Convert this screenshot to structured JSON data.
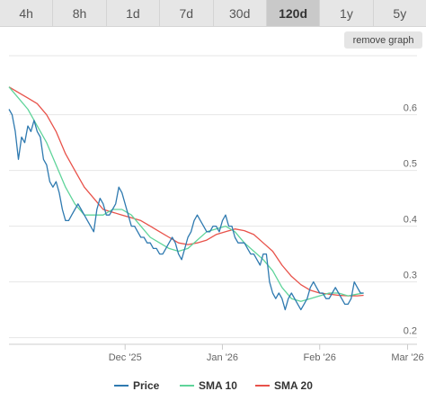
{
  "range_tabs": [
    "4h",
    "8h",
    "1d",
    "7d",
    "30d",
    "120d",
    "1y",
    "5y"
  ],
  "active_tab_index": 5,
  "remove_graph_label": "remove graph",
  "colors": {
    "price": "#2f7ab0",
    "sma10": "#5fd49a",
    "sma20": "#e8524a"
  },
  "chart_data": {
    "type": "line",
    "x_axis": {
      "ticks": [
        {
          "label": "Dec '25",
          "day": 37
        },
        {
          "label": "Jan '26",
          "day": 68
        },
        {
          "label": "Feb '26",
          "day": 99
        },
        {
          "label": "Mar '26",
          "day": 127
        }
      ],
      "range_days": [
        0,
        130
      ]
    },
    "y_axis": {
      "ticks": [
        0.2,
        0.3,
        0.4,
        0.5,
        0.6
      ],
      "range": [
        0.188,
        0.706
      ]
    },
    "grid": true,
    "legend": {
      "position": "bottom",
      "entries": [
        "Price",
        "SMA 10",
        "SMA 20"
      ]
    },
    "series": [
      {
        "name": "Price",
        "color": "#2f7ab0",
        "points": [
          [
            0,
            0.61
          ],
          [
            1,
            0.6
          ],
          [
            2,
            0.57
          ],
          [
            3,
            0.52
          ],
          [
            4,
            0.56
          ],
          [
            5,
            0.55
          ],
          [
            6,
            0.58
          ],
          [
            7,
            0.57
          ],
          [
            8,
            0.59
          ],
          [
            9,
            0.57
          ],
          [
            10,
            0.56
          ],
          [
            11,
            0.52
          ],
          [
            12,
            0.51
          ],
          [
            13,
            0.48
          ],
          [
            14,
            0.47
          ],
          [
            15,
            0.48
          ],
          [
            16,
            0.46
          ],
          [
            17,
            0.43
          ],
          [
            18,
            0.41
          ],
          [
            19,
            0.41
          ],
          [
            20,
            0.42
          ],
          [
            21,
            0.43
          ],
          [
            22,
            0.44
          ],
          [
            23,
            0.43
          ],
          [
            24,
            0.42
          ],
          [
            25,
            0.41
          ],
          [
            26,
            0.4
          ],
          [
            27,
            0.39
          ],
          [
            28,
            0.43
          ],
          [
            29,
            0.45
          ],
          [
            30,
            0.44
          ],
          [
            31,
            0.42
          ],
          [
            32,
            0.42
          ],
          [
            33,
            0.43
          ],
          [
            34,
            0.44
          ],
          [
            35,
            0.47
          ],
          [
            36,
            0.46
          ],
          [
            37,
            0.44
          ],
          [
            38,
            0.42
          ],
          [
            39,
            0.4
          ],
          [
            40,
            0.4
          ],
          [
            41,
            0.39
          ],
          [
            42,
            0.38
          ],
          [
            43,
            0.38
          ],
          [
            44,
            0.37
          ],
          [
            45,
            0.37
          ],
          [
            46,
            0.36
          ],
          [
            47,
            0.36
          ],
          [
            48,
            0.35
          ],
          [
            49,
            0.35
          ],
          [
            50,
            0.36
          ],
          [
            51,
            0.37
          ],
          [
            52,
            0.38
          ],
          [
            53,
            0.37
          ],
          [
            54,
            0.35
          ],
          [
            55,
            0.34
          ],
          [
            56,
            0.36
          ],
          [
            57,
            0.38
          ],
          [
            58,
            0.39
          ],
          [
            59,
            0.41
          ],
          [
            60,
            0.42
          ],
          [
            61,
            0.41
          ],
          [
            62,
            0.4
          ],
          [
            63,
            0.39
          ],
          [
            64,
            0.39
          ],
          [
            65,
            0.4
          ],
          [
            66,
            0.4
          ],
          [
            67,
            0.39
          ],
          [
            68,
            0.41
          ],
          [
            69,
            0.42
          ],
          [
            70,
            0.4
          ],
          [
            71,
            0.4
          ],
          [
            72,
            0.38
          ],
          [
            73,
            0.37
          ],
          [
            74,
            0.37
          ],
          [
            75,
            0.37
          ],
          [
            76,
            0.36
          ],
          [
            77,
            0.35
          ],
          [
            78,
            0.35
          ],
          [
            79,
            0.34
          ],
          [
            80,
            0.33
          ],
          [
            81,
            0.35
          ],
          [
            82,
            0.35
          ],
          [
            83,
            0.3
          ],
          [
            84,
            0.28
          ],
          [
            85,
            0.27
          ],
          [
            86,
            0.28
          ],
          [
            87,
            0.27
          ],
          [
            88,
            0.25
          ],
          [
            89,
            0.27
          ],
          [
            90,
            0.28
          ],
          [
            91,
            0.27
          ],
          [
            92,
            0.26
          ],
          [
            93,
            0.25
          ],
          [
            94,
            0.26
          ],
          [
            95,
            0.27
          ],
          [
            96,
            0.29
          ],
          [
            97,
            0.3
          ],
          [
            98,
            0.29
          ],
          [
            99,
            0.28
          ],
          [
            100,
            0.28
          ],
          [
            101,
            0.27
          ],
          [
            102,
            0.27
          ],
          [
            103,
            0.28
          ],
          [
            104,
            0.29
          ],
          [
            105,
            0.28
          ],
          [
            106,
            0.27
          ],
          [
            107,
            0.26
          ],
          [
            108,
            0.26
          ],
          [
            109,
            0.27
          ],
          [
            110,
            0.3
          ],
          [
            111,
            0.29
          ],
          [
            112,
            0.28
          ],
          [
            113,
            0.28
          ]
        ]
      },
      {
        "name": "SMA 10",
        "color": "#5fd49a",
        "points": [
          [
            0,
            0.65
          ],
          [
            3,
            0.63
          ],
          [
            6,
            0.61
          ],
          [
            9,
            0.58
          ],
          [
            12,
            0.55
          ],
          [
            15,
            0.51
          ],
          [
            18,
            0.47
          ],
          [
            21,
            0.44
          ],
          [
            24,
            0.42
          ],
          [
            27,
            0.42
          ],
          [
            30,
            0.42
          ],
          [
            33,
            0.43
          ],
          [
            36,
            0.43
          ],
          [
            39,
            0.42
          ],
          [
            42,
            0.4
          ],
          [
            45,
            0.38
          ],
          [
            48,
            0.37
          ],
          [
            51,
            0.36
          ],
          [
            54,
            0.355
          ],
          [
            57,
            0.36
          ],
          [
            60,
            0.375
          ],
          [
            63,
            0.39
          ],
          [
            66,
            0.395
          ],
          [
            69,
            0.4
          ],
          [
            72,
            0.39
          ],
          [
            75,
            0.37
          ],
          [
            78,
            0.355
          ],
          [
            81,
            0.34
          ],
          [
            84,
            0.32
          ],
          [
            87,
            0.29
          ],
          [
            90,
            0.27
          ],
          [
            93,
            0.265
          ],
          [
            96,
            0.27
          ],
          [
            99,
            0.275
          ],
          [
            102,
            0.28
          ],
          [
            105,
            0.28
          ],
          [
            108,
            0.275
          ],
          [
            111,
            0.278
          ],
          [
            113,
            0.28
          ]
        ]
      },
      {
        "name": "SMA 20",
        "color": "#e8524a",
        "points": [
          [
            0,
            0.65
          ],
          [
            3,
            0.64
          ],
          [
            6,
            0.63
          ],
          [
            9,
            0.62
          ],
          [
            12,
            0.6
          ],
          [
            15,
            0.57
          ],
          [
            18,
            0.53
          ],
          [
            21,
            0.5
          ],
          [
            24,
            0.47
          ],
          [
            27,
            0.45
          ],
          [
            30,
            0.43
          ],
          [
            33,
            0.425
          ],
          [
            36,
            0.42
          ],
          [
            39,
            0.415
          ],
          [
            42,
            0.41
          ],
          [
            45,
            0.4
          ],
          [
            48,
            0.39
          ],
          [
            51,
            0.38
          ],
          [
            54,
            0.37
          ],
          [
            57,
            0.367
          ],
          [
            60,
            0.37
          ],
          [
            63,
            0.375
          ],
          [
            66,
            0.385
          ],
          [
            69,
            0.39
          ],
          [
            72,
            0.395
          ],
          [
            75,
            0.392
          ],
          [
            78,
            0.385
          ],
          [
            81,
            0.37
          ],
          [
            84,
            0.355
          ],
          [
            87,
            0.33
          ],
          [
            90,
            0.31
          ],
          [
            93,
            0.295
          ],
          [
            96,
            0.285
          ],
          [
            99,
            0.28
          ],
          [
            102,
            0.278
          ],
          [
            105,
            0.276
          ],
          [
            108,
            0.275
          ],
          [
            111,
            0.275
          ],
          [
            113,
            0.276
          ]
        ]
      }
    ]
  }
}
